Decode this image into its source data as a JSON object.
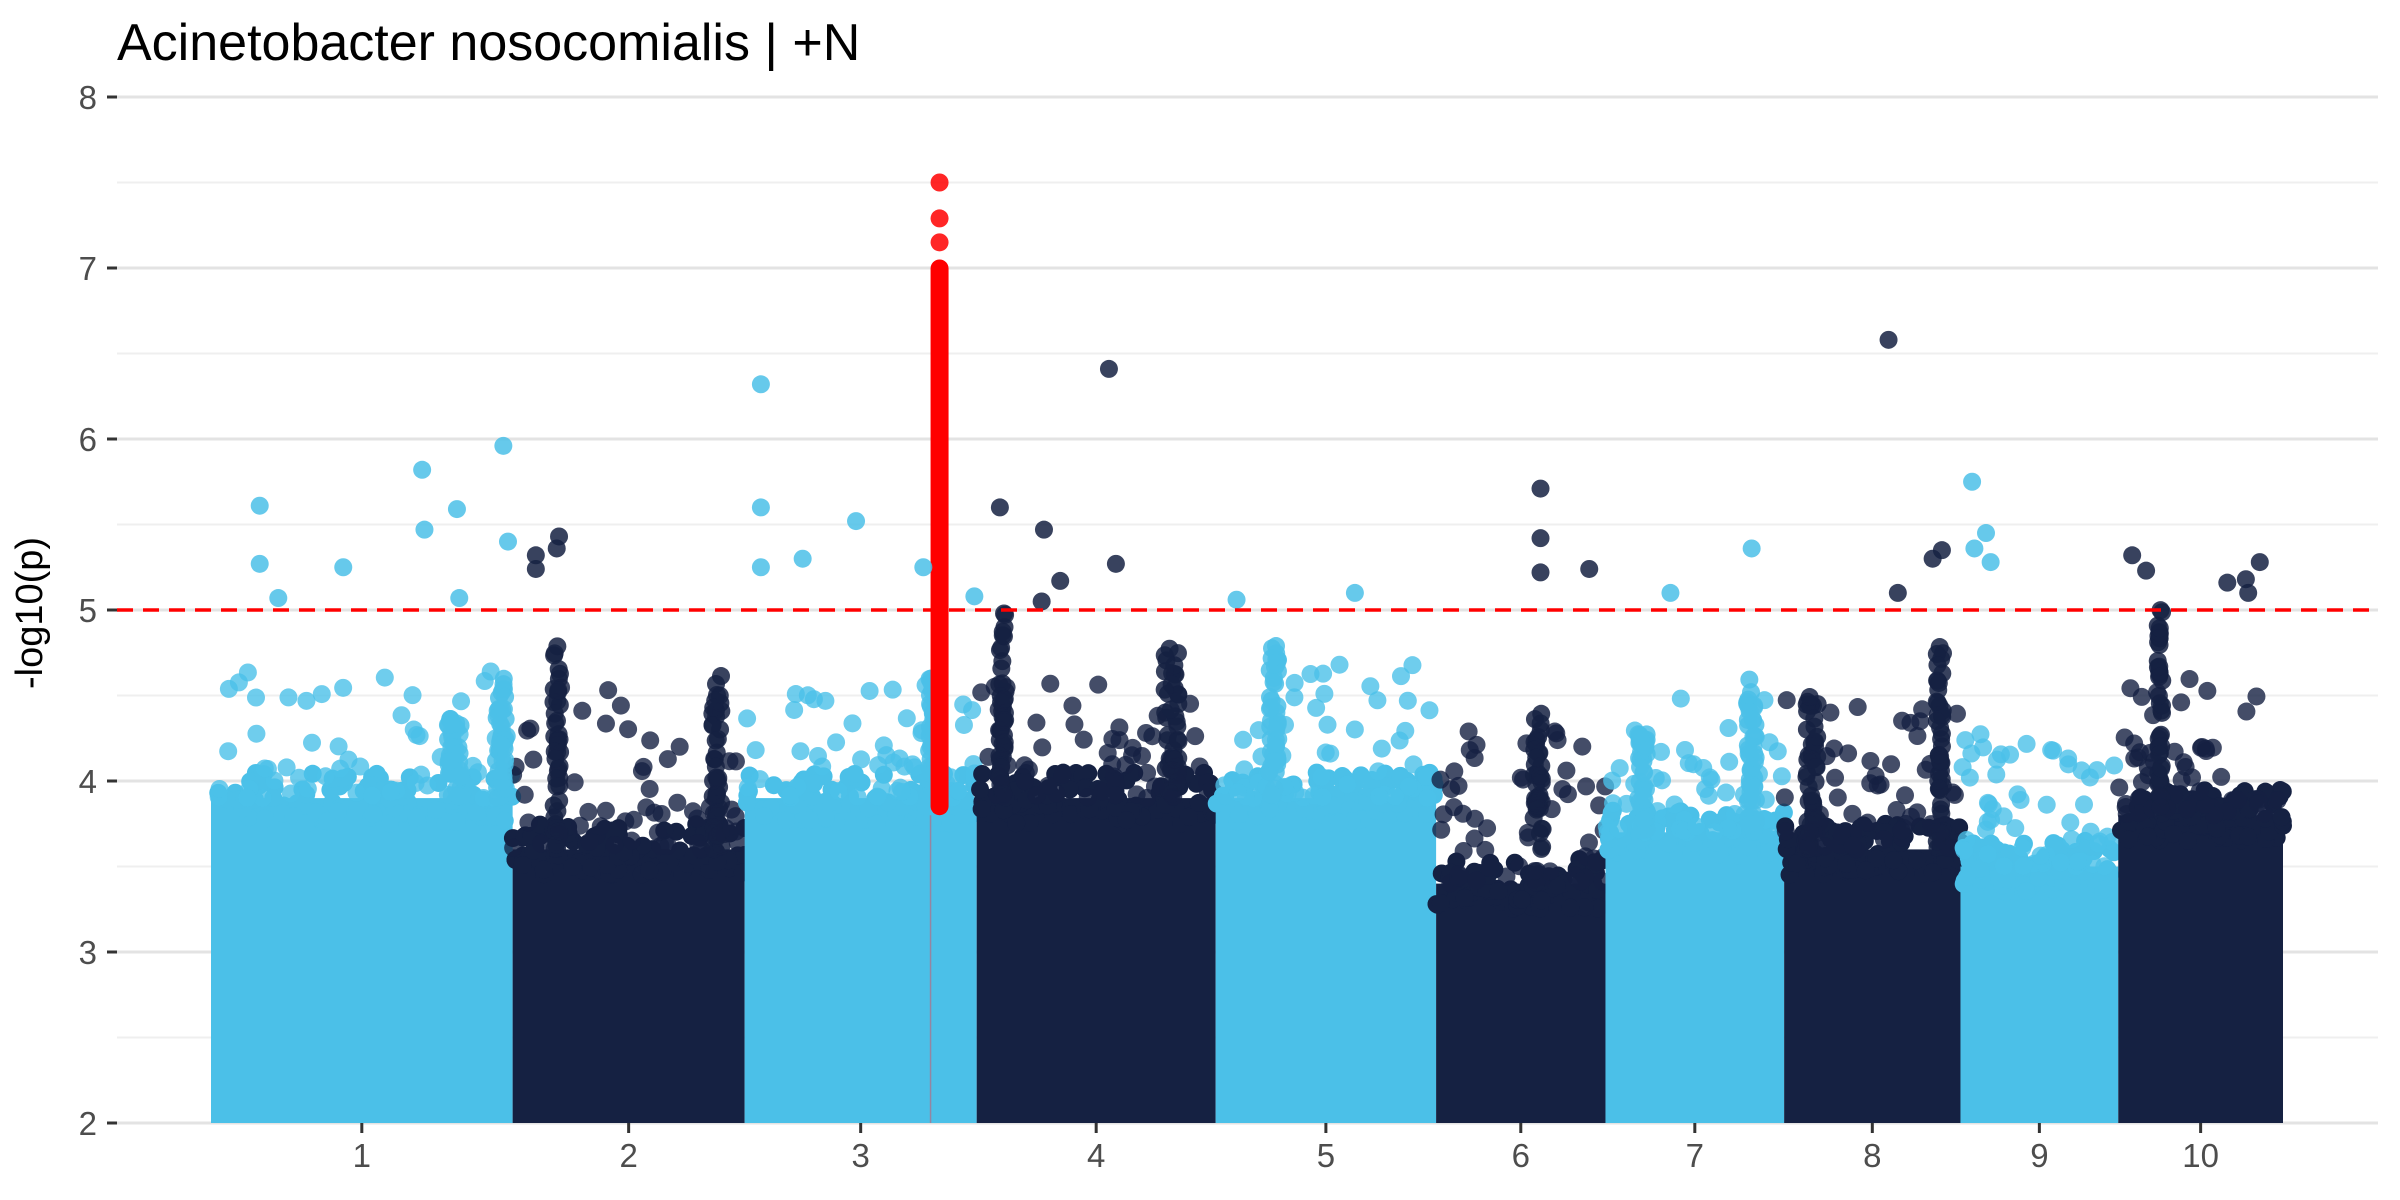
{
  "chart_data": {
    "type": "scatter",
    "subtype": "manhattan",
    "title": "Acinetobacter nosocomialis | +N",
    "xlabel": "",
    "ylabel": "-log10(p)",
    "ylim": [
      2,
      8
    ],
    "y_ticks": [
      2,
      3,
      4,
      5,
      6,
      7,
      8
    ],
    "grid": true,
    "legend": "none",
    "threshold": {
      "y": 5,
      "color": "#ff0000",
      "style": "dashed"
    },
    "colors": {
      "light": "#4bc0e8",
      "dark": "#152142",
      "highlight": "#ff0000"
    },
    "chromosomes": [
      {
        "label": "1",
        "color": "light",
        "start": 0,
        "end": 130,
        "dense_top": 3.9,
        "cloud_top": 4.7
      },
      {
        "label": "2",
        "color": "dark",
        "start": 130,
        "end": 230,
        "dense_top": 3.6,
        "cloud_top": 4.6
      },
      {
        "label": "3",
        "color": "light",
        "start": 230,
        "end": 330,
        "dense_top": 3.9,
        "cloud_top": 4.6
      },
      {
        "label": "4",
        "color": "dark",
        "start": 330,
        "end": 433,
        "dense_top": 3.9,
        "cloud_top": 4.6
      },
      {
        "label": "5",
        "color": "light",
        "start": 433,
        "end": 528,
        "dense_top": 3.9,
        "cloud_top": 4.7
      },
      {
        "label": "6",
        "color": "dark",
        "start": 528,
        "end": 601,
        "dense_top": 3.4,
        "cloud_top": 4.3
      },
      {
        "label": "7",
        "color": "light",
        "start": 601,
        "end": 678,
        "dense_top": 3.7,
        "cloud_top": 4.5
      },
      {
        "label": "8",
        "color": "dark",
        "start": 678,
        "end": 754,
        "dense_top": 3.6,
        "cloud_top": 4.5
      },
      {
        "label": "9",
        "color": "light",
        "start": 754,
        "end": 822,
        "dense_top": 3.5,
        "cloud_top": 4.3
      },
      {
        "label": "10",
        "color": "dark",
        "start": 822,
        "end": 893,
        "dense_top": 3.8,
        "cloud_top": 4.6
      }
    ],
    "peaks": [
      {
        "chrom": "1",
        "x": 105,
        "y_top": 4.4,
        "width": 6
      },
      {
        "chrom": "1",
        "x": 125,
        "y_top": 4.6,
        "width": 5
      },
      {
        "chrom": "2",
        "x": 149,
        "y_top": 4.9,
        "width": 3
      },
      {
        "chrom": "2",
        "x": 218,
        "y_top": 4.7,
        "width": 4
      },
      {
        "chrom": "3",
        "x": 311,
        "y_top": 4.6,
        "width": 3
      },
      {
        "chrom": "4",
        "x": 341,
        "y_top": 5.0,
        "width": 3
      },
      {
        "chrom": "4",
        "x": 414,
        "y_top": 4.8,
        "width": 6
      },
      {
        "chrom": "5",
        "x": 458,
        "y_top": 4.8,
        "width": 4
      },
      {
        "chrom": "6",
        "x": 572,
        "y_top": 4.4,
        "width": 4
      },
      {
        "chrom": "7",
        "x": 617,
        "y_top": 4.3,
        "width": 4
      },
      {
        "chrom": "7",
        "x": 664,
        "y_top": 4.6,
        "width": 4
      },
      {
        "chrom": "8",
        "x": 690,
        "y_top": 4.5,
        "width": 5
      },
      {
        "chrom": "8",
        "x": 745,
        "y_top": 4.8,
        "width": 3
      },
      {
        "chrom": "10",
        "x": 840,
        "y_top": 5.0,
        "width": 2
      }
    ],
    "highlight_locus": {
      "chrom": "3",
      "x": 314,
      "y_range": [
        3.8,
        7.05
      ]
    },
    "top_hits": [
      {
        "chrom": "3",
        "x": 314,
        "y": 7.5
      },
      {
        "chrom": "3",
        "x": 314,
        "y": 7.29
      },
      {
        "chrom": "3",
        "x": 314,
        "y": 7.15
      },
      {
        "chrom": "8",
        "x": 723,
        "y": 6.58
      },
      {
        "chrom": "4",
        "x": 387,
        "y": 6.41
      },
      {
        "chrom": "3",
        "x": 237,
        "y": 6.32
      },
      {
        "chrom": "1",
        "x": 126,
        "y": 5.96
      },
      {
        "chrom": "1",
        "x": 91,
        "y": 5.82
      },
      {
        "chrom": "9",
        "x": 759,
        "y": 5.75
      },
      {
        "chrom": "6",
        "x": 573,
        "y": 5.71
      },
      {
        "chrom": "1",
        "x": 21,
        "y": 5.61
      },
      {
        "chrom": "3",
        "x": 237,
        "y": 5.6
      },
      {
        "chrom": "4",
        "x": 340,
        "y": 5.6
      },
      {
        "chrom": "1",
        "x": 106,
        "y": 5.59
      },
      {
        "chrom": "3",
        "x": 278,
        "y": 5.52
      },
      {
        "chrom": "1",
        "x": 92,
        "y": 5.47
      },
      {
        "chrom": "4",
        "x": 359,
        "y": 5.47
      },
      {
        "chrom": "9",
        "x": 765,
        "y": 5.45
      },
      {
        "chrom": "2",
        "x": 150,
        "y": 5.43
      },
      {
        "chrom": "6",
        "x": 573,
        "y": 5.42
      },
      {
        "chrom": "1",
        "x": 128,
        "y": 5.4
      },
      {
        "chrom": "7",
        "x": 664,
        "y": 5.36
      },
      {
        "chrom": "2",
        "x": 149,
        "y": 5.36
      },
      {
        "chrom": "9",
        "x": 760,
        "y": 5.36
      },
      {
        "chrom": "8",
        "x": 746,
        "y": 5.35
      },
      {
        "chrom": "10",
        "x": 828,
        "y": 5.32
      },
      {
        "chrom": "2",
        "x": 140,
        "y": 5.32
      },
      {
        "chrom": "3",
        "x": 255,
        "y": 5.3
      },
      {
        "chrom": "8",
        "x": 742,
        "y": 5.3
      },
      {
        "chrom": "10",
        "x": 883,
        "y": 5.28
      },
      {
        "chrom": "9",
        "x": 767,
        "y": 5.28
      },
      {
        "chrom": "1",
        "x": 21,
        "y": 5.27
      },
      {
        "chrom": "4",
        "x": 390,
        "y": 5.27
      },
      {
        "chrom": "3",
        "x": 237,
        "y": 5.25
      },
      {
        "chrom": "1",
        "x": 57,
        "y": 5.25
      },
      {
        "chrom": "6",
        "x": 594,
        "y": 5.24
      },
      {
        "chrom": "2",
        "x": 140,
        "y": 5.24
      },
      {
        "chrom": "10",
        "x": 834,
        "y": 5.23
      },
      {
        "chrom": "6",
        "x": 573,
        "y": 5.22
      },
      {
        "chrom": "3",
        "x": 307,
        "y": 5.25
      },
      {
        "chrom": "10",
        "x": 877,
        "y": 5.18
      },
      {
        "chrom": "10",
        "x": 869,
        "y": 5.16
      },
      {
        "chrom": "4",
        "x": 366,
        "y": 5.17
      },
      {
        "chrom": "8",
        "x": 727,
        "y": 5.1
      },
      {
        "chrom": "7",
        "x": 629,
        "y": 5.1
      },
      {
        "chrom": "5",
        "x": 493,
        "y": 5.1
      },
      {
        "chrom": "10",
        "x": 878,
        "y": 5.1
      },
      {
        "chrom": "1",
        "x": 29,
        "y": 5.07
      },
      {
        "chrom": "1",
        "x": 107,
        "y": 5.07
      },
      {
        "chrom": "3",
        "x": 329,
        "y": 5.08
      },
      {
        "chrom": "5",
        "x": 442,
        "y": 5.06
      },
      {
        "chrom": "4",
        "x": 358,
        "y": 5.05
      }
    ]
  }
}
